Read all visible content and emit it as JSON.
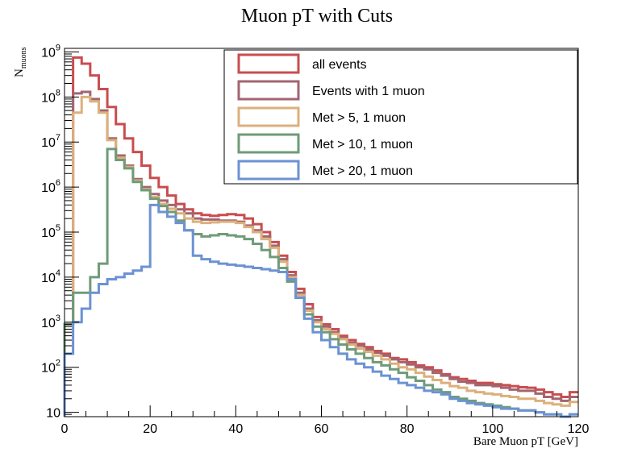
{
  "chart_data": {
    "type": "line",
    "title": "Muon pT with Cuts",
    "xlabel": "Bare Muon pT [GeV]",
    "ylabel": "N",
    "ylabel_sub": "muons",
    "xlim": [
      0,
      120
    ],
    "ylim": [
      8,
      1200000000
    ],
    "yscale": "log",
    "grid": false,
    "legend_position": "top-right",
    "x_ticks": [
      "0",
      "20",
      "40",
      "60",
      "80",
      "100",
      "120"
    ],
    "x_tick_values": [
      0,
      20,
      40,
      60,
      80,
      100,
      120
    ],
    "y_ticks": [
      {
        "value": 10,
        "base": "10",
        "exp": ""
      },
      {
        "value": 100,
        "base": "10",
        "exp": "2"
      },
      {
        "value": 1000,
        "base": "10",
        "exp": "3"
      },
      {
        "value": 10000,
        "base": "10",
        "exp": "4"
      },
      {
        "value": 100000,
        "base": "10",
        "exp": "5"
      },
      {
        "value": 1000000,
        "base": "10",
        "exp": "6"
      },
      {
        "value": 10000000,
        "base": "10",
        "exp": "7"
      },
      {
        "value": 100000000,
        "base": "10",
        "exp": "8"
      },
      {
        "value": 1000000000,
        "base": "10",
        "exp": "9"
      }
    ],
    "bin_edges": [
      0,
      2,
      4,
      6,
      8,
      10,
      12,
      14,
      16,
      18,
      20,
      22,
      24,
      26,
      28,
      30,
      32,
      34,
      36,
      38,
      40,
      42,
      44,
      46,
      48,
      50,
      52,
      54,
      56,
      58,
      60,
      62,
      64,
      66,
      68,
      70,
      72,
      74,
      76,
      78,
      80,
      82,
      84,
      86,
      88,
      90,
      92,
      94,
      96,
      98,
      100,
      102,
      104,
      106,
      108,
      110,
      112,
      114,
      116,
      118,
      120
    ],
    "series": [
      {
        "name": "all events",
        "color": "#c94d4f",
        "values": [
          900,
          750000000,
          550000000,
          300000000,
          150000000,
          60000000,
          25000000,
          12000000,
          6000000,
          3000000,
          1600000,
          1000000,
          650000,
          420000,
          320000,
          260000,
          240000,
          230000,
          240000,
          250000,
          240000,
          200000,
          150000,
          100000,
          60000,
          30000,
          13000,
          5500,
          2500,
          1300,
          900,
          700,
          500,
          400,
          330,
          280,
          230,
          200,
          160,
          150,
          130,
          110,
          100,
          85,
          70,
          60,
          55,
          50,
          45,
          45,
          42,
          40,
          38,
          36,
          35,
          32,
          28,
          25,
          22,
          28
        ]
      },
      {
        "name": "Events with 1 muon",
        "color": "#a26570",
        "values": [
          900,
          120000000,
          130000000,
          90000000,
          50000000,
          12000000,
          5000000,
          3000000,
          1500000,
          1000000,
          700000,
          500000,
          400000,
          320000,
          260000,
          200000,
          190000,
          190000,
          180000,
          180000,
          170000,
          140000,
          110000,
          80000,
          50000,
          25000,
          11000,
          4500,
          2000,
          1100,
          800,
          600,
          450,
          350,
          300,
          250,
          210,
          180,
          150,
          130,
          115,
          100,
          90,
          75,
          65,
          55,
          48,
          45,
          40,
          40,
          38,
          35,
          32,
          30,
          30,
          26,
          22,
          20,
          18,
          22
        ]
      },
      {
        "name": "Met > 5, 1 muon",
        "color": "#dcb07c",
        "values": [
          900,
          45000000,
          100000000,
          80000000,
          45000000,
          11000000,
          4500000,
          2800000,
          1400000,
          900000,
          600000,
          420000,
          330000,
          260000,
          200000,
          170000,
          160000,
          165000,
          170000,
          170000,
          160000,
          130000,
          100000,
          70000,
          45000,
          22000,
          10000,
          4000,
          1800,
          1000,
          700,
          550,
          420,
          320,
          260,
          220,
          180,
          150,
          120,
          100,
          90,
          75,
          62,
          52,
          45,
          38,
          35,
          30,
          28,
          26,
          25,
          23,
          22,
          20,
          20,
          18,
          16,
          15,
          14,
          17
        ]
      },
      {
        "name": "Met > 10, 1 muon",
        "color": "#6f9b79",
        "values": [
          900,
          4500,
          4500,
          10000,
          20000,
          7000000,
          4000000,
          2600000,
          1300000,
          850000,
          550000,
          380000,
          280000,
          180000,
          110000,
          90000,
          80000,
          85000,
          90000,
          85000,
          80000,
          70000,
          55000,
          40000,
          28000,
          16000,
          8000,
          3500,
          1500,
          800,
          600,
          420,
          320,
          250,
          200,
          160,
          130,
          110,
          90,
          75,
          60,
          50,
          40,
          32,
          28,
          22,
          20,
          18,
          16,
          15,
          14,
          13,
          12,
          11,
          11,
          10,
          9,
          9,
          8,
          9
        ]
      },
      {
        "name": "Met > 20, 1 muon",
        "color": "#6c92d2",
        "values": [
          200,
          1000,
          2000,
          4500,
          7000,
          9000,
          10000,
          12000,
          14000,
          17000,
          400000,
          280000,
          220000,
          160000,
          110000,
          30000,
          25000,
          22000,
          20000,
          19000,
          18000,
          17000,
          16000,
          15000,
          14000,
          13000,
          9000,
          3500,
          1200,
          600,
          400,
          280,
          200,
          150,
          120,
          100,
          80,
          65,
          55,
          45,
          40,
          35,
          30,
          28,
          25,
          20,
          18,
          16,
          15,
          14,
          13,
          12,
          12,
          11,
          11,
          10,
          9,
          9,
          8,
          9
        ]
      }
    ]
  }
}
